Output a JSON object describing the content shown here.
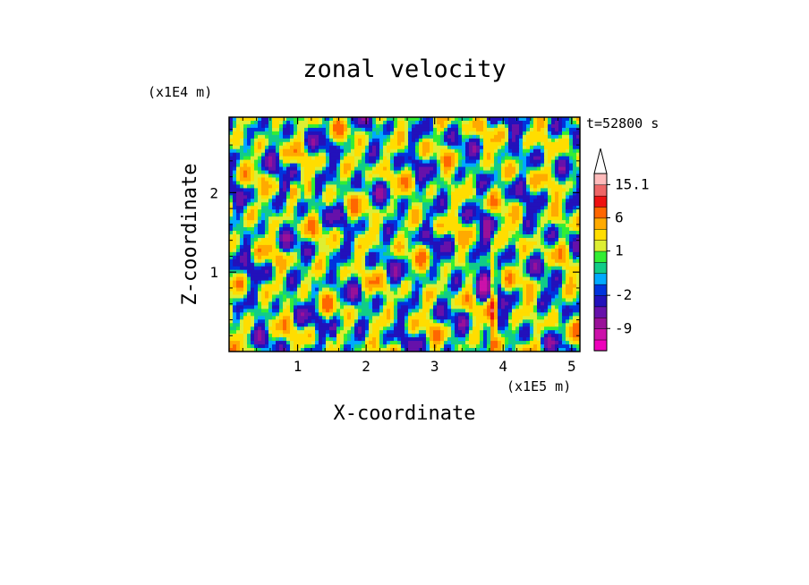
{
  "chart_data": {
    "type": "heatmap",
    "title": "zonal velocity",
    "xlabel": "X-coordinate",
    "ylabel": "Z-coordinate",
    "x_unit": "(x1E5 m)",
    "y_unit": "(x1E4 m)",
    "time_label": "t=52800 s",
    "xlim": [
      0,
      5.12
    ],
    "ylim": [
      0,
      2.95
    ],
    "x_ticks": [
      1,
      2,
      3,
      4,
      5
    ],
    "y_ticks": [
      1,
      2
    ],
    "colorbar": {
      "labels": [
        "15.1",
        "6",
        "1",
        "-2",
        "-9"
      ],
      "label_values": [
        15.1,
        6,
        1,
        -2,
        -9
      ],
      "levels": [
        -15,
        -12,
        -9,
        -6,
        -4,
        -2,
        -1,
        -0.5,
        0.5,
        1,
        2,
        4,
        6,
        9,
        12,
        15.1
      ],
      "colors": [
        "#ee00bb",
        "#cc11aa",
        "#991199",
        "#6611aa",
        "#2211bb",
        "#0033dd",
        "#00aaff",
        "#11cc88",
        "#33ee33",
        "#ddee33",
        "#ffdd00",
        "#ffaa00",
        "#ff6600",
        "#ee1111",
        "#ee6666",
        "#ffbbbb"
      ],
      "over_color": "#ffffff"
    }
  }
}
